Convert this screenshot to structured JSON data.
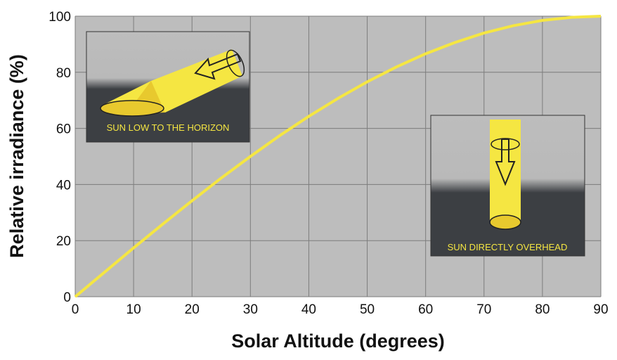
{
  "chart_data": {
    "type": "line",
    "xlabel": "Solar Altitude (degrees)",
    "ylabel": "Relative irradiance (%)",
    "x": [
      0,
      5,
      10,
      15,
      20,
      25,
      30,
      35,
      40,
      45,
      50,
      55,
      60,
      65,
      70,
      75,
      80,
      85,
      90
    ],
    "values": [
      0,
      8.7,
      17.4,
      25.9,
      34.2,
      42.3,
      50,
      57.4,
      64.3,
      70.7,
      76.6,
      81.9,
      86.6,
      90.6,
      94,
      96.6,
      98.5,
      99.6,
      100
    ],
    "color": "#f5e642",
    "xlim": [
      0,
      90
    ],
    "xticks": [
      0,
      10,
      20,
      30,
      40,
      50,
      60,
      70,
      80,
      90
    ],
    "ylim": [
      0,
      100
    ],
    "yticks": [
      0,
      20,
      40,
      60,
      80,
      100
    ],
    "grid": true,
    "annotations": [
      "SUN LOW TO THE HORIZON",
      "SUN DIRECTLY OVERHEAD"
    ]
  }
}
